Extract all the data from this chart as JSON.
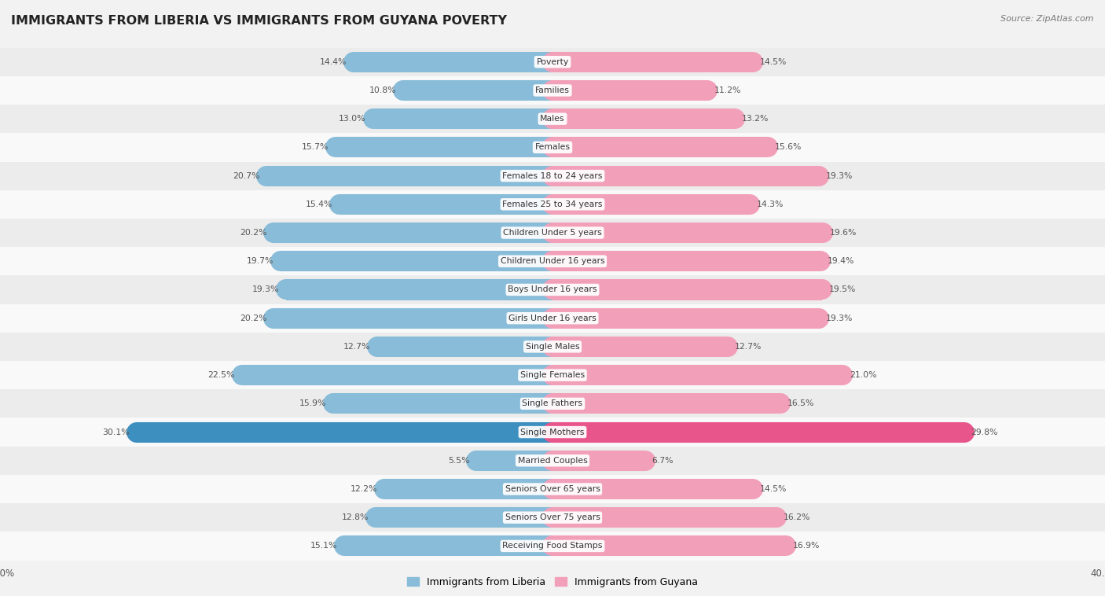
{
  "title": "IMMIGRANTS FROM LIBERIA VS IMMIGRANTS FROM GUYANA POVERTY",
  "source": "Source: ZipAtlas.com",
  "categories": [
    "Poverty",
    "Families",
    "Males",
    "Females",
    "Females 18 to 24 years",
    "Females 25 to 34 years",
    "Children Under 5 years",
    "Children Under 16 years",
    "Boys Under 16 years",
    "Girls Under 16 years",
    "Single Males",
    "Single Females",
    "Single Fathers",
    "Single Mothers",
    "Married Couples",
    "Seniors Over 65 years",
    "Seniors Over 75 years",
    "Receiving Food Stamps"
  ],
  "liberia_values": [
    14.4,
    10.8,
    13.0,
    15.7,
    20.7,
    15.4,
    20.2,
    19.7,
    19.3,
    20.2,
    12.7,
    22.5,
    15.9,
    30.1,
    5.5,
    12.2,
    12.8,
    15.1
  ],
  "guyana_values": [
    14.5,
    11.2,
    13.2,
    15.6,
    19.3,
    14.3,
    19.6,
    19.4,
    19.5,
    19.3,
    12.7,
    21.0,
    16.5,
    29.8,
    6.7,
    14.5,
    16.2,
    16.9
  ],
  "liberia_color": "#88bcd8",
  "guyana_color": "#f2a0ba",
  "single_mothers_liberia_color": "#3d8fc0",
  "single_mothers_guyana_color": "#e8558a",
  "background_color": "#f2f2f2",
  "row_color_light": "#f9f9f9",
  "row_color_dark": "#ececec",
  "bar_max": 40.0,
  "legend_liberia": "Immigrants from Liberia",
  "legend_guyana": "Immigrants from Guyana",
  "value_label_fontsize": 7.8,
  "category_fontsize": 7.8,
  "title_fontsize": 11.5
}
